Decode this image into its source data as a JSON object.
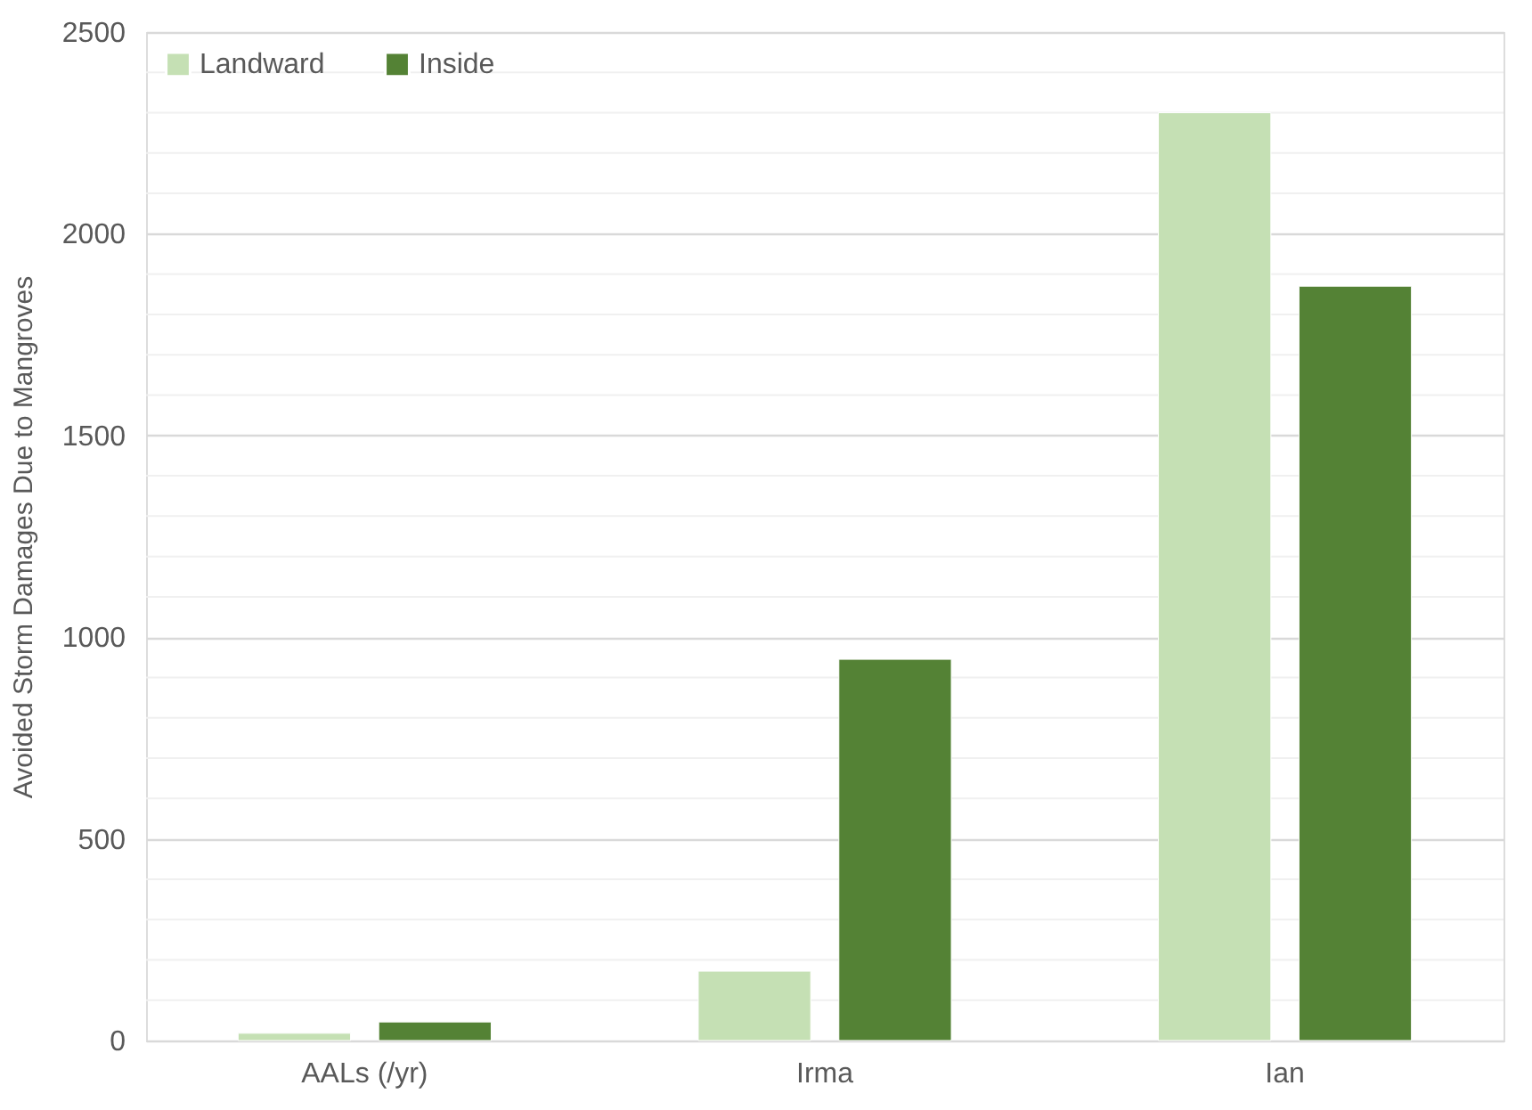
{
  "chart_data": {
    "type": "bar",
    "ylabel": "Avoided Storm Damages Due to Mangroves",
    "categories": [
      "AALs (/yr)",
      "Irma",
      "Ian"
    ],
    "series": [
      {
        "name": "Landward",
        "color": "#c5e0b4",
        "values": [
          18,
          172,
          2300
        ]
      },
      {
        "name": "Inside",
        "color": "#548235",
        "values": [
          46,
          945,
          1870
        ]
      }
    ],
    "ylim": [
      0,
      2500
    ],
    "yticks": [
      0,
      {
        "value": 100,
        "label": null
      },
      {
        "value": 200,
        "label": null
      },
      {
        "value": 300,
        "label": null
      },
      {
        "value": 400,
        "label": null
      },
      500,
      {
        "value": 600,
        "label": null
      },
      {
        "value": 700,
        "label": null
      },
      {
        "value": 800,
        "label": null
      },
      {
        "value": 900,
        "label": null
      },
      1000,
      {
        "value": 1100,
        "label": null
      },
      {
        "value": 1200,
        "label": null
      },
      {
        "value": 1300,
        "label": null
      },
      {
        "value": 1400,
        "label": null
      },
      1500,
      {
        "value": 1600,
        "label": null
      },
      {
        "value": 1700,
        "label": null
      },
      {
        "value": 1800,
        "label": null
      },
      {
        "value": 1900,
        "label": null
      },
      2000,
      {
        "value": 2100,
        "label": null
      },
      {
        "value": 2200,
        "label": null
      },
      {
        "value": 2300,
        "label": null
      },
      {
        "value": 2400,
        "label": null
      },
      2500
    ],
    "grid": "y",
    "legend": "top left"
  }
}
